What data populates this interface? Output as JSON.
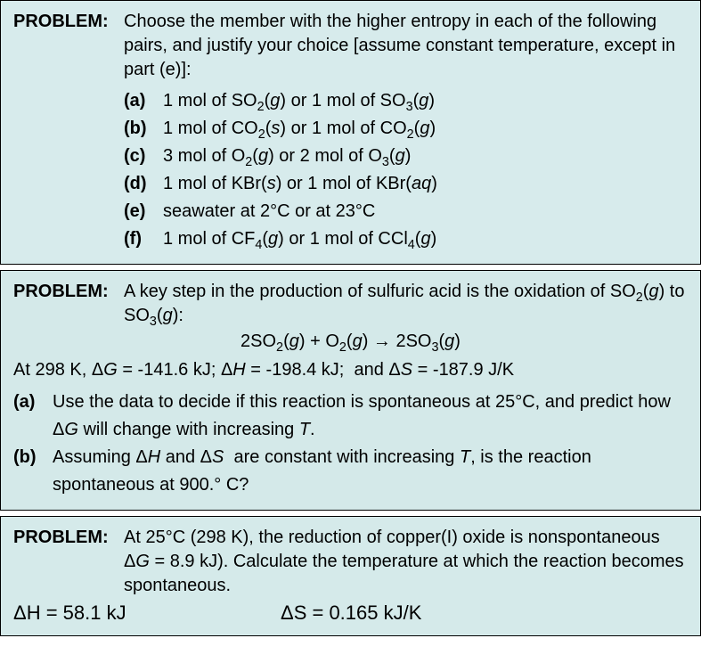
{
  "colors": {
    "panel1_bg": "#d7ebec",
    "panel2_bg": "#d4e9e9",
    "panel3_bg": "#d5eaea",
    "text": "#000000",
    "border": "#000000"
  },
  "problem1": {
    "label": "PROBLEM:",
    "intro_parts": [
      "Choose the member with the higher entropy in each of the following pairs, and justify your choice [assume constant temperature, except in part (e)]:"
    ],
    "items": [
      {
        "letter": "(a)",
        "html": "1 mol of SO<span class='sub'>2</span>(<span class='ital'>g</span>) or 1 mol of SO<span class='sub'>3</span>(<span class='ital'>g</span>)"
      },
      {
        "letter": "(b)",
        "html": "1 mol of CO<span class='sub'>2</span>(<span class='ital'>s</span>) or 1 mol of CO<span class='sub'>2</span>(<span class='ital'>g</span>)"
      },
      {
        "letter": "(c)",
        "html": "3 mol of O<span class='sub'>2</span>(<span class='ital'>g</span>) or 2 mol of O<span class='sub'>3</span>(<span class='ital'>g</span>)"
      },
      {
        "letter": "(d)",
        "html": "1 mol of KBr(<span class='ital'>s</span>) or 1 mol of KBr(<span class='ital'>aq</span>)"
      },
      {
        "letter": "(e)",
        "html": "seawater at 2°C or at 23°C"
      },
      {
        "letter": "(f)",
        "html": "1 mol of CF<span class='sub'>4</span>(<span class='ital'>g</span>) or 1 mol of CCl<span class='sub'>4</span>(<span class='ital'>g</span>)"
      }
    ]
  },
  "problem2": {
    "label": "PROBLEM:",
    "intro_html": "A key step in the production of sulfuric acid is the oxidation of SO<span class='sub'>2</span>(<span class='ital'>g</span>) to SO<span class='sub'>3</span>(<span class='ital'>g</span>):",
    "equation_html": "2SO<span class='sub'>2</span>(<span class='ital'>g</span>) + O<span class='sub'>2</span>(<span class='ital'>g</span>) → 2SO<span class='sub'>3</span>(<span class='ital'>g</span>)",
    "data_line_html": "At 298 K, Δ<span class='ital'>G</span> = -141.6 kJ; Δ<span class='ital'>H</span> = -198.4 kJ;&nbsp; and Δ<span class='ital'>S</span> = -187.9 J/K",
    "parts": [
      {
        "letter": "(a)",
        "html": "Use the data to decide if this reaction is spontaneous at 25°C, and predict how Δ<span class='ital'>G</span> will change with increasing <span class='ital'>T</span>."
      },
      {
        "letter": "(b)",
        "html": "Assuming Δ<span class='ital'>H</span> and Δ<span class='ital'>S</span>&nbsp; are constant with increasing <span class='ital'>T</span>, is the reaction spontaneous at 900.° C?"
      }
    ]
  },
  "problem3": {
    "label": "PROBLEM:",
    "intro_html": "At 25°C (298 K), the reduction of copper(I) oxide is nonspontaneous Δ<span class='ital'>G</span> = 8.9 kJ). Calculate the temperature at which the reaction becomes spontaneous.",
    "dh_html": "ΔH = 58.1 kJ",
    "ds_html": "ΔS = 0.165 kJ/K"
  }
}
